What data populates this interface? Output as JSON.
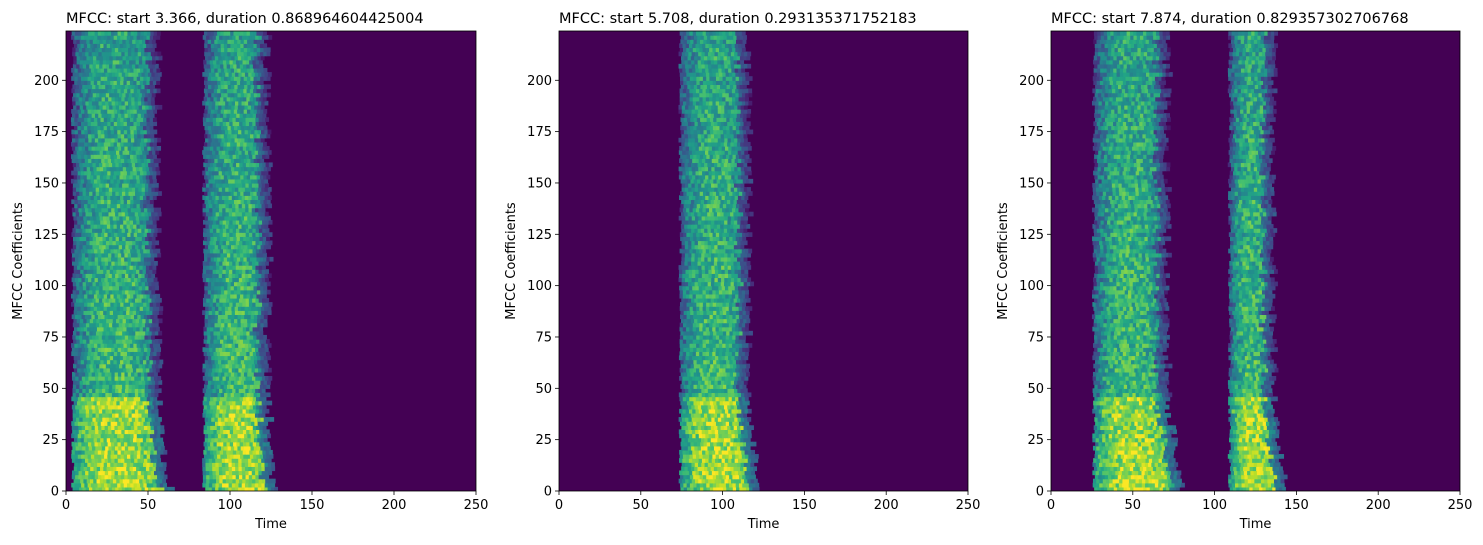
{
  "chart_data": [
    {
      "type": "heatmap",
      "title": "MFCC: start 3.366, duration 0.868964604425004",
      "xlabel": "Time",
      "ylabel": "MFCC Coefficients",
      "xlim": [
        0,
        250
      ],
      "ylim": [
        0,
        224
      ],
      "xticks": [
        0,
        50,
        100,
        150,
        200,
        250
      ],
      "yticks": [
        0,
        25,
        50,
        75,
        100,
        125,
        150,
        175,
        200
      ],
      "colormap": "viridis",
      "background_color": "#440154",
      "segments": [
        {
          "x_start": 4,
          "x_end": 55,
          "low_end": 62
        },
        {
          "x_start": 84,
          "x_end": 122,
          "low_end": 126
        }
      ],
      "grid": false
    },
    {
      "type": "heatmap",
      "title": "MFCC: start 5.708, duration 0.293135371752183",
      "xlabel": "Time",
      "ylabel": "MFCC Coefficients",
      "xlim": [
        0,
        250
      ],
      "ylim": [
        0,
        224
      ],
      "xticks": [
        0,
        50,
        100,
        150,
        200,
        250
      ],
      "yticks": [
        0,
        25,
        50,
        75,
        100,
        125,
        150,
        175,
        200
      ],
      "colormap": "viridis",
      "background_color": "#440154",
      "segments": [
        {
          "x_start": 74,
          "x_end": 115,
          "low_end": 122
        }
      ],
      "grid": false
    },
    {
      "type": "heatmap",
      "title": "MFCC: start 7.874, duration 0.829357302706768",
      "xlabel": "Time",
      "ylabel": "MFCC Coefficients",
      "xlim": [
        0,
        250
      ],
      "ylim": [
        0,
        224
      ],
      "xticks": [
        0,
        50,
        100,
        150,
        200,
        250
      ],
      "yticks": [
        0,
        25,
        50,
        75,
        100,
        125,
        150,
        175,
        200
      ],
      "colormap": "viridis",
      "background_color": "#440154",
      "segments": [
        {
          "x_start": 26,
          "x_end": 70,
          "low_end": 80
        },
        {
          "x_start": 109,
          "x_end": 135,
          "low_end": 142
        }
      ],
      "grid": false
    }
  ]
}
